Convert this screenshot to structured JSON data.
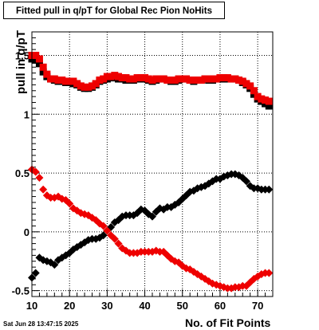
{
  "chart_data": {
    "type": "scatter",
    "title": "Fitted pull in q/pT for Global Rec Pion NoHits",
    "xlabel": "No. of Fit Points",
    "ylabel": "pull in q/pT",
    "xlim": [
      10,
      74
    ],
    "ylim": [
      -0.55,
      1.7
    ],
    "x_ticks": [
      10,
      20,
      30,
      40,
      50,
      60,
      70
    ],
    "y_ticks": [
      -0.5,
      0,
      0.5,
      1,
      1.5
    ],
    "x_tick_labels": [
      "10",
      "20",
      "30",
      "40",
      "50",
      "60",
      "70"
    ],
    "y_tick_labels": [
      "-0.5",
      "0",
      "0.5",
      "1",
      "1.5"
    ],
    "grid": true,
    "x": [
      10,
      11,
      12,
      13,
      14,
      15,
      16,
      17,
      18,
      19,
      20,
      21,
      22,
      23,
      24,
      25,
      26,
      27,
      28,
      29,
      30,
      31,
      32,
      33,
      34,
      35,
      36,
      37,
      38,
      39,
      40,
      41,
      42,
      43,
      44,
      45,
      46,
      47,
      48,
      49,
      50,
      51,
      52,
      53,
      54,
      55,
      56,
      57,
      58,
      59,
      60,
      61,
      62,
      63,
      64,
      65,
      66,
      67,
      68,
      69,
      70,
      71,
      72,
      73
    ],
    "series": [
      {
        "marker": "square",
        "color": "#000000",
        "values": [
          1.47,
          1.46,
          1.43,
          1.36,
          1.32,
          1.3,
          1.29,
          1.28,
          1.28,
          1.27,
          1.27,
          1.26,
          1.25,
          1.23,
          1.22,
          1.22,
          1.23,
          1.25,
          1.28,
          1.29,
          1.3,
          1.31,
          1.31,
          1.3,
          1.3,
          1.29,
          1.29,
          1.29,
          1.3,
          1.3,
          1.3,
          1.29,
          1.28,
          1.29,
          1.3,
          1.3,
          1.29,
          1.28,
          1.28,
          1.29,
          1.3,
          1.3,
          1.29,
          1.28,
          1.29,
          1.29,
          1.3,
          1.29,
          1.29,
          1.3,
          1.3,
          1.3,
          1.3,
          1.3,
          1.3,
          1.29,
          1.27,
          1.25,
          1.22,
          1.17,
          1.13,
          1.11,
          1.09,
          1.07
        ]
      },
      {
        "marker": "square",
        "color": "#ee0000",
        "values": [
          1.5,
          1.5,
          1.47,
          1.4,
          1.34,
          1.3,
          1.3,
          1.29,
          1.29,
          1.28,
          1.28,
          1.28,
          1.26,
          1.24,
          1.23,
          1.23,
          1.24,
          1.26,
          1.29,
          1.3,
          1.32,
          1.32,
          1.33,
          1.32,
          1.31,
          1.31,
          1.3,
          1.3,
          1.31,
          1.31,
          1.31,
          1.3,
          1.29,
          1.3,
          1.3,
          1.3,
          1.29,
          1.29,
          1.29,
          1.3,
          1.3,
          1.3,
          1.29,
          1.29,
          1.29,
          1.29,
          1.3,
          1.3,
          1.3,
          1.3,
          1.31,
          1.31,
          1.31,
          1.3,
          1.3,
          1.29,
          1.28,
          1.26,
          1.24,
          1.2,
          1.15,
          1.13,
          1.12,
          1.11
        ]
      },
      {
        "marker": "diamond",
        "color": "#000000",
        "values": [
          -0.39,
          -0.35,
          -0.22,
          -0.24,
          -0.25,
          -0.26,
          -0.28,
          -0.24,
          -0.22,
          -0.2,
          -0.18,
          -0.15,
          -0.13,
          -0.11,
          -0.09,
          -0.07,
          -0.06,
          -0.06,
          -0.05,
          -0.03,
          0.01,
          0.04,
          0.08,
          0.1,
          0.13,
          0.14,
          0.14,
          0.14,
          0.16,
          0.19,
          0.18,
          0.15,
          0.13,
          0.17,
          0.2,
          0.19,
          0.21,
          0.21,
          0.23,
          0.25,
          0.28,
          0.31,
          0.34,
          0.35,
          0.37,
          0.38,
          0.39,
          0.41,
          0.43,
          0.45,
          0.45,
          0.47,
          0.48,
          0.49,
          0.49,
          0.48,
          0.46,
          0.43,
          0.39,
          0.37,
          0.37,
          0.36,
          0.36,
          0.36
        ]
      },
      {
        "marker": "diamond",
        "color": "#ee0000",
        "values": [
          0.53,
          0.51,
          0.46,
          0.36,
          0.31,
          0.29,
          0.29,
          0.3,
          0.28,
          0.27,
          0.24,
          0.2,
          0.18,
          0.16,
          0.15,
          0.14,
          0.12,
          0.1,
          0.07,
          0.05,
          0.01,
          -0.03,
          -0.06,
          -0.1,
          -0.14,
          -0.16,
          -0.18,
          -0.18,
          -0.18,
          -0.17,
          -0.17,
          -0.17,
          -0.17,
          -0.16,
          -0.17,
          -0.17,
          -0.2,
          -0.23,
          -0.25,
          -0.26,
          -0.29,
          -0.31,
          -0.32,
          -0.34,
          -0.36,
          -0.38,
          -0.4,
          -0.42,
          -0.44,
          -0.45,
          -0.46,
          -0.47,
          -0.48,
          -0.48,
          -0.47,
          -0.47,
          -0.46,
          -0.46,
          -0.43,
          -0.4,
          -0.38,
          -0.36,
          -0.35,
          -0.35
        ]
      }
    ]
  },
  "timestamp": "Sat Jun 28 13:47:15 2025"
}
